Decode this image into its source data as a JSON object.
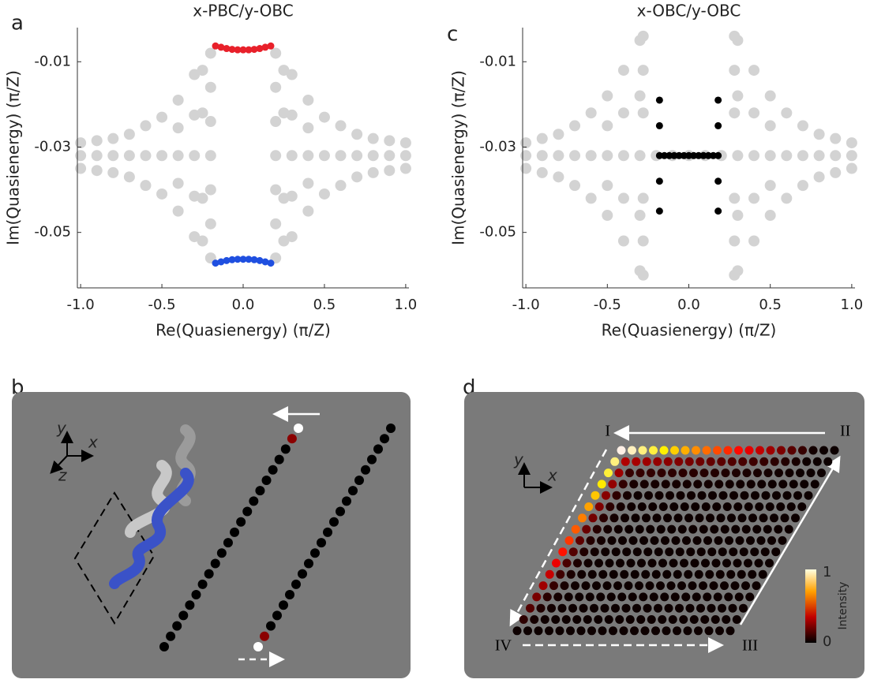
{
  "panel_labels": [
    "a",
    "b",
    "c",
    "d"
  ],
  "chart_data": [
    {
      "type": "scatter",
      "title": "x-PBC/y-OBC",
      "xlabel": "Re(Quasienergy) (π/Z)",
      "ylabel": "Im(Quasienergy) (π/Z)",
      "xlim": [
        -1.02,
        1.02
      ],
      "ylim": [
        -0.063,
        -0.002
      ],
      "xticks": [
        {
          "value": -1,
          "label": "-1.0"
        },
        -0.5,
        {
          "value": 0,
          "label": "0.0"
        },
        0.5,
        {
          "value": 1,
          "label": "1.0"
        }
      ],
      "yticks": [
        -0.01,
        -0.03,
        -0.05
      ],
      "series": [
        {
          "color": "#d3d3d3",
          "x": [
            -1,
            -1,
            -1,
            -0.9,
            -0.9,
            -0.9,
            -0.8,
            -0.8,
            -0.8,
            -0.7,
            -0.7,
            -0.7,
            -0.6,
            -0.6,
            -0.6,
            -0.5,
            -0.5,
            -0.5,
            -0.4,
            -0.4,
            -0.4,
            -0.4,
            -0.4,
            -0.3,
            -0.3,
            -0.3,
            -0.3,
            -0.3,
            -0.25,
            -0.25,
            -0.25,
            -0.25,
            -0.2,
            -0.2,
            -0.2,
            -0.2,
            -0.2,
            -0.2,
            -0.2,
            1,
            1,
            1,
            0.9,
            0.9,
            0.9,
            0.8,
            0.8,
            0.8,
            0.7,
            0.7,
            0.7,
            0.6,
            0.6,
            0.6,
            0.5,
            0.5,
            0.5,
            0.4,
            0.4,
            0.4,
            0.4,
            0.4,
            0.3,
            0.3,
            0.3,
            0.3,
            0.3,
            0.25,
            0.25,
            0.25,
            0.25,
            0.2,
            0.2,
            0.2,
            0.2,
            0.2,
            0.2,
            0.2
          ],
          "values": [
            -0.032,
            -0.029,
            -0.035,
            -0.032,
            -0.0285,
            -0.0355,
            -0.032,
            -0.028,
            -0.036,
            -0.032,
            -0.027,
            -0.037,
            -0.032,
            -0.025,
            -0.039,
            -0.032,
            -0.023,
            -0.041,
            -0.032,
            -0.019,
            -0.045,
            -0.0255,
            -0.0385,
            -0.032,
            -0.013,
            -0.051,
            -0.0225,
            -0.0415,
            -0.012,
            -0.022,
            -0.042,
            -0.052,
            -0.008,
            -0.016,
            -0.024,
            -0.032,
            -0.04,
            -0.048,
            -0.056,
            -0.032,
            -0.029,
            -0.035,
            -0.032,
            -0.0285,
            -0.0355,
            -0.032,
            -0.028,
            -0.036,
            -0.032,
            -0.027,
            -0.037,
            -0.032,
            -0.025,
            -0.039,
            -0.032,
            -0.023,
            -0.041,
            -0.032,
            -0.019,
            -0.045,
            -0.0255,
            -0.0385,
            -0.032,
            -0.013,
            -0.051,
            -0.0225,
            -0.0415,
            -0.012,
            -0.022,
            -0.042,
            -0.052,
            -0.008,
            -0.016,
            -0.024,
            -0.032,
            -0.04,
            -0.048,
            -0.056
          ]
        },
        {
          "color": "#e8202a",
          "x": [
            -0.17,
            -0.136,
            -0.102,
            -0.068,
            -0.034,
            0,
            0.034,
            0.068,
            0.102,
            0.136,
            0.17
          ],
          "values": [
            -0.0063,
            -0.0066,
            -0.0069,
            -0.0071,
            -0.0072,
            -0.0072,
            -0.0072,
            -0.0071,
            -0.0069,
            -0.0066,
            -0.0063
          ]
        },
        {
          "color": "#1f4fe0",
          "x": [
            -0.17,
            -0.136,
            -0.102,
            -0.068,
            -0.034,
            0,
            0.034,
            0.068,
            0.102,
            0.136,
            0.17
          ],
          "values": [
            -0.0572,
            -0.0569,
            -0.0566,
            -0.0564,
            -0.0563,
            -0.0563,
            -0.0563,
            -0.0564,
            -0.0566,
            -0.0569,
            -0.0572
          ]
        }
      ]
    },
    {
      "type": "scatter",
      "title": "x-OBC/y-OBC",
      "xlabel": "Re(Quasienergy) (π/Z)",
      "ylabel": "Im(Quasienergy) (π/Z)",
      "xlim": [
        -1.02,
        1.02
      ],
      "ylim": [
        -0.063,
        -0.002
      ],
      "xticks": [
        {
          "value": -1,
          "label": "-1.0"
        },
        -0.5,
        {
          "value": 0,
          "label": "0.0"
        },
        0.5,
        {
          "value": 1,
          "label": "1.0"
        }
      ],
      "yticks": [
        -0.01,
        -0.03,
        -0.05
      ],
      "series": [
        {
          "color": "#d3d3d3",
          "x": [
            -1,
            -1,
            -1,
            -0.9,
            -0.9,
            -0.9,
            -0.8,
            -0.8,
            -0.8,
            -0.7,
            -0.7,
            -0.7,
            -0.6,
            -0.6,
            -0.6,
            -0.5,
            -0.5,
            -0.5,
            -0.5,
            -0.5,
            -0.4,
            -0.4,
            -0.4,
            -0.4,
            -0.4,
            -0.3,
            -0.3,
            -0.3,
            -0.3,
            -0.3,
            -0.28,
            -0.28,
            -0.28,
            -0.28,
            -0.28,
            -0.28,
            -0.2,
            -0.1,
            0,
            1,
            1,
            1,
            0.9,
            0.9,
            0.9,
            0.8,
            0.8,
            0.8,
            0.7,
            0.7,
            0.7,
            0.6,
            0.6,
            0.6,
            0.5,
            0.5,
            0.5,
            0.5,
            0.5,
            0.4,
            0.4,
            0.4,
            0.4,
            0.4,
            0.3,
            0.3,
            0.3,
            0.3,
            0.3,
            0.28,
            0.28,
            0.28,
            0.28,
            0.28,
            0.28,
            0.2,
            0.1
          ],
          "values": [
            -0.032,
            -0.029,
            -0.035,
            -0.032,
            -0.028,
            -0.036,
            -0.032,
            -0.027,
            -0.037,
            -0.032,
            -0.025,
            -0.039,
            -0.032,
            -0.022,
            -0.042,
            -0.032,
            -0.018,
            -0.046,
            -0.025,
            -0.039,
            -0.032,
            -0.012,
            -0.052,
            -0.022,
            -0.042,
            -0.032,
            -0.005,
            -0.059,
            -0.018,
            -0.046,
            -0.004,
            -0.012,
            -0.022,
            -0.042,
            -0.052,
            -0.06,
            -0.032,
            -0.032,
            -0.032,
            -0.032,
            -0.029,
            -0.035,
            -0.032,
            -0.028,
            -0.036,
            -0.032,
            -0.027,
            -0.037,
            -0.032,
            -0.025,
            -0.039,
            -0.032,
            -0.022,
            -0.042,
            -0.032,
            -0.018,
            -0.046,
            -0.025,
            -0.039,
            -0.032,
            -0.012,
            -0.052,
            -0.022,
            -0.042,
            -0.032,
            -0.005,
            -0.059,
            -0.018,
            -0.046,
            -0.004,
            -0.012,
            -0.022,
            -0.042,
            -0.052,
            -0.06,
            -0.032,
            -0.032
          ]
        },
        {
          "color": "#000000",
          "x": [
            -0.18,
            -0.18,
            -0.18,
            -0.18,
            0.18,
            0.18,
            0.18,
            0.18,
            -0.18,
            -0.15,
            -0.12,
            -0.09,
            -0.06,
            -0.03,
            0,
            0.03,
            0.06,
            0.09,
            0.12,
            0.15,
            0.18
          ],
          "values": [
            -0.019,
            -0.025,
            -0.038,
            -0.045,
            -0.019,
            -0.025,
            -0.038,
            -0.045,
            -0.032,
            -0.032,
            -0.032,
            -0.032,
            -0.032,
            -0.032,
            -0.032,
            -0.032,
            -0.032,
            -0.032,
            -0.032,
            -0.032,
            -0.032
          ]
        }
      ]
    }
  ],
  "panel_b": {
    "axes": [
      "y",
      "x",
      "z"
    ]
  },
  "panel_d": {
    "axes": [
      "y",
      "x"
    ],
    "corners": [
      "I",
      "II",
      "III",
      "IV"
    ],
    "colorbar": {
      "label": "Intensity",
      "ticks": [
        1,
        0
      ]
    }
  }
}
